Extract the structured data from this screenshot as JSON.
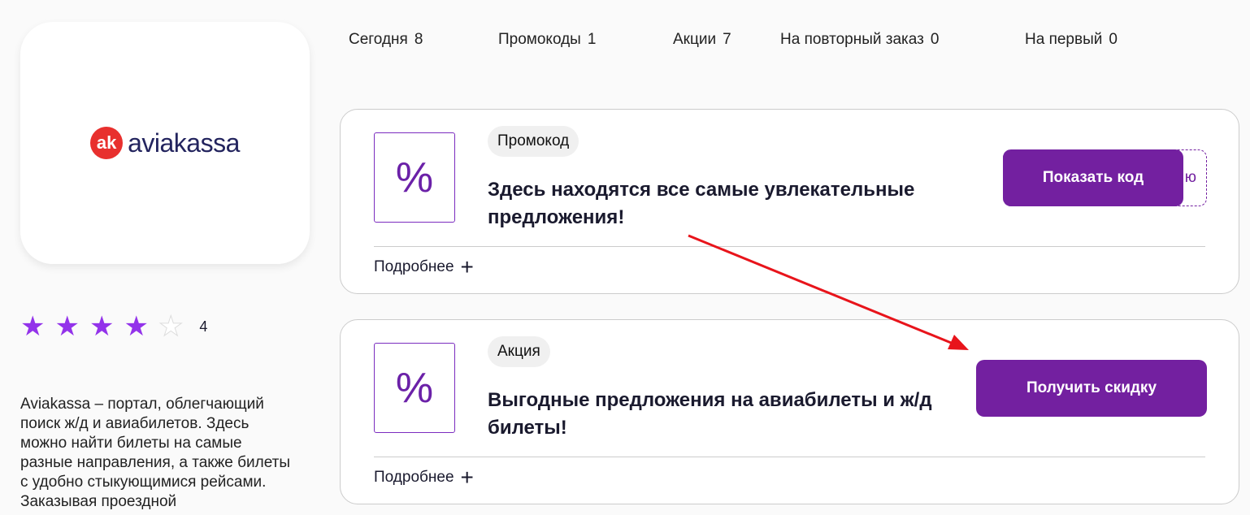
{
  "brand": {
    "logo_mark": "ak",
    "logo_text": "aviakassa"
  },
  "rating": {
    "value": "4",
    "stars": 4,
    "max": 5
  },
  "description": "Aviakassa – портал, облегчающий поиск ж/д и авиабилетов. Здесь можно найти билеты на самые разные направления, а также билеты с удобно стыкующимися рейсами. Заказывая проездной",
  "tabs": [
    {
      "label": "Сегодня",
      "count": "8"
    },
    {
      "label": "Промокоды",
      "count": "1"
    },
    {
      "label": "Акции",
      "count": "7"
    },
    {
      "label": "На повторный заказ",
      "count": "0"
    },
    {
      "label": "На первый",
      "count": "0"
    }
  ],
  "offers": [
    {
      "icon": "percent",
      "badge": "Промокод",
      "title": "Здесь находятся все самые увлекательные предложения!",
      "more": "Подробнее",
      "button": "Показать код",
      "code_peek": "ю"
    },
    {
      "icon": "percent",
      "badge": "Акция",
      "title": "Выгодные предложения на авиабилеты и ж/д билеты!",
      "more": "Подробнее",
      "button": "Получить скидку"
    }
  ],
  "colors": {
    "accent": "#7320a0",
    "star": "#9333ea",
    "arrow": "#e8141b"
  }
}
